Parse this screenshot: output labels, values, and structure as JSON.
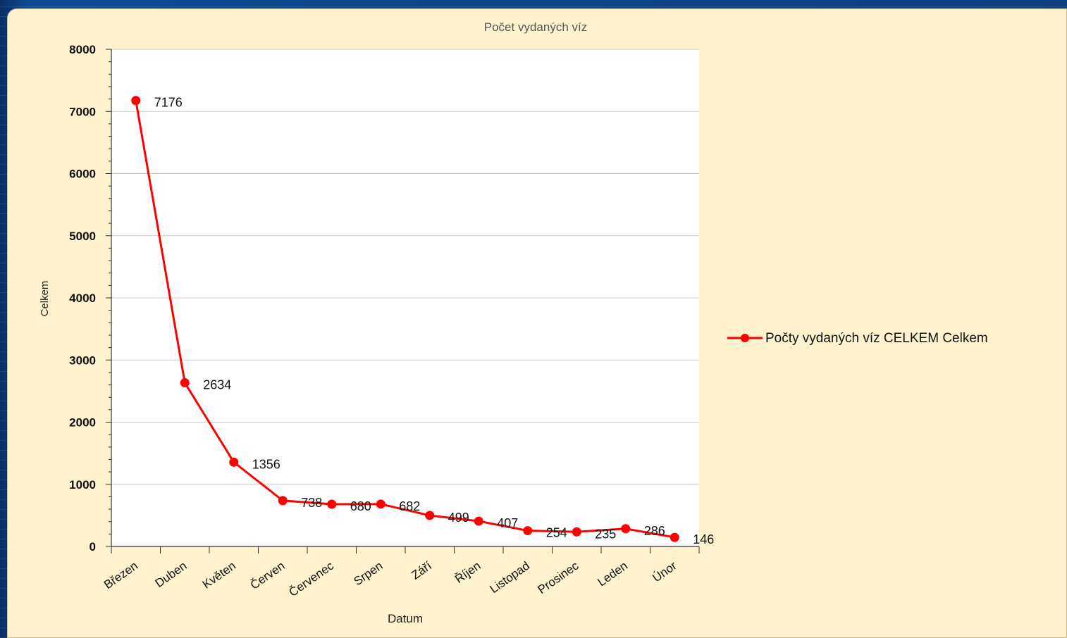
{
  "chart_data": {
    "type": "line",
    "title": "Počet vydaných víz",
    "xlabel": "Datum",
    "ylabel": "Celkem",
    "ylim": [
      0,
      8000
    ],
    "yticks": [
      0,
      1000,
      2000,
      3000,
      4000,
      5000,
      6000,
      7000,
      8000
    ],
    "categories": [
      "Březen",
      "Duben",
      "Květen",
      "Červen",
      "Červenec",
      "Srpen",
      "Září",
      "Říjen",
      "Listopad",
      "Prosinec",
      "Leden",
      "Únor"
    ],
    "series": [
      {
        "name": "Počty vydaných víz CELKEM Celkem",
        "color": "#ff0000",
        "values": [
          7176,
          2634,
          1356,
          738,
          680,
          682,
          499,
          407,
          254,
          235,
          286,
          146
        ]
      }
    ],
    "grid": true,
    "legend": "right"
  }
}
